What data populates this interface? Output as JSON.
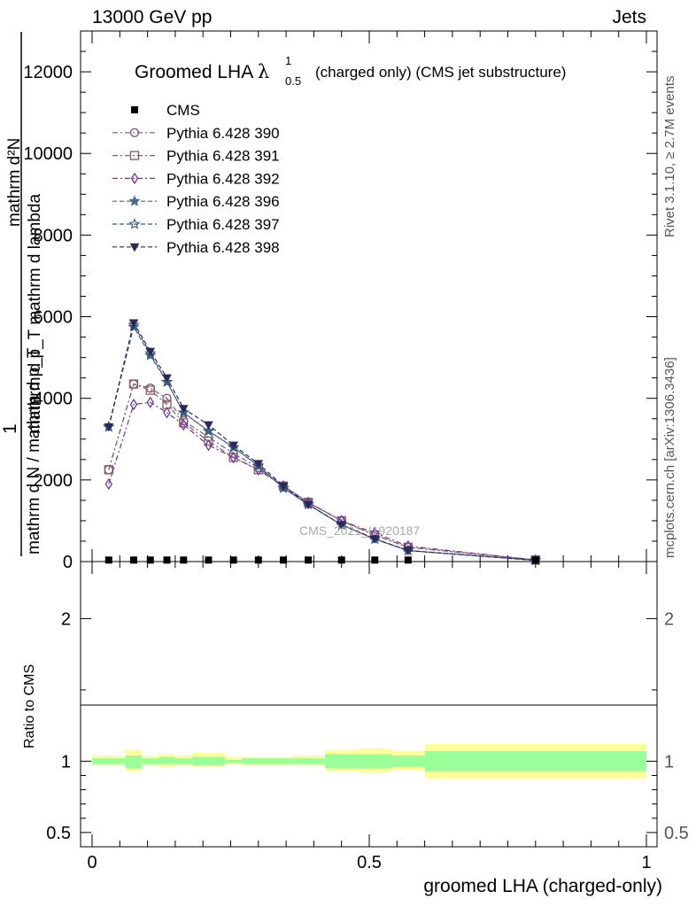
{
  "header": {
    "left": "13000 GeV pp",
    "right": "Jets"
  },
  "side_labels": {
    "rivet": "Rivet 3.1.10, ≥ 2.7M events",
    "mcplots": "mcplots.cern.ch [arXiv:1306.3436]"
  },
  "chart_data": {
    "type": "line",
    "title_main": "Groomed LHA",
    "title_symbol": "λ",
    "title_sup": "1",
    "title_sub": "0.5",
    "title_rest": "(charged only) (CMS jet substructure)",
    "watermark": "CMS_2021_I1920187",
    "ylabel_numer": "mathrm d²N",
    "ylabel_numer2": "mathrm d p_T mathrm d lambda",
    "ylabel_denom": "mathrm d N / mathrm d p_T",
    "ylabel_one": "1",
    "xlabel": "groomed LHA (charged-only)",
    "ratio_ylabel": "Ratio to CMS",
    "xlim": [
      0,
      1
    ],
    "ylim_main": [
      0,
      13000
    ],
    "ylim_ratio": [
      0.4,
      2.4
    ],
    "yticks_main": [
      "0",
      "2000",
      "4000",
      "6000",
      "8000",
      "10000",
      "12000"
    ],
    "yticks_main_values": [
      0,
      2000,
      4000,
      6000,
      8000,
      10000,
      12000
    ],
    "xticks": [
      "0",
      "0.5",
      "1"
    ],
    "xticks_values": [
      0,
      0.5,
      1
    ],
    "yticks_ratio": [
      "0.5",
      "1",
      "2"
    ],
    "yticks_ratio_values": [
      0.5,
      1,
      2
    ],
    "bin_edges": [
      0,
      0.06,
      0.09,
      0.12,
      0.15,
      0.18,
      0.24,
      0.27,
      0.33,
      0.36,
      0.42,
      0.48,
      0.54,
      0.6,
      1.0
    ],
    "x": [
      0.03,
      0.075,
      0.105,
      0.135,
      0.165,
      0.21,
      0.255,
      0.3,
      0.345,
      0.39,
      0.45,
      0.51,
      0.57,
      0.8
    ],
    "cms": {
      "name": "CMS",
      "values": [
        15,
        15,
        15,
        15,
        15,
        15,
        15,
        15,
        15,
        15,
        15,
        15,
        15,
        15
      ]
    },
    "series": [
      {
        "name": "Pythia 6.428 390",
        "color": "#7b5a8a",
        "marker": "circle",
        "values": [
          2250,
          4350,
          4250,
          4000,
          3450,
          3050,
          2650,
          2300,
          1850,
          1450,
          1000,
          650,
          350,
          40
        ]
      },
      {
        "name": "Pythia 6.428 391",
        "color": "#8a5a5a",
        "marker": "square",
        "values": [
          2250,
          4350,
          4200,
          3850,
          3400,
          2950,
          2550,
          2250,
          1850,
          1450,
          1000,
          650,
          350,
          40
        ]
      },
      {
        "name": "Pythia 6.428 392",
        "color": "#6a3a9a",
        "marker": "diamond",
        "values": [
          1900,
          3850,
          3900,
          3650,
          3350,
          2850,
          2550,
          2250,
          1850,
          1450,
          1000,
          700,
          380,
          40
        ]
      },
      {
        "name": "Pythia 6.428 396",
        "color": "#4a6a8a",
        "marker": "star",
        "values": [
          3300,
          5750,
          5050,
          4400,
          3650,
          3200,
          2800,
          2350,
          1800,
          1400,
          900,
          550,
          270,
          30
        ]
      },
      {
        "name": "Pythia 6.428 397",
        "color": "#3a5a7a",
        "marker": "star-open",
        "values": [
          3300,
          5800,
          5100,
          4400,
          3650,
          3200,
          2800,
          2350,
          1800,
          1400,
          900,
          550,
          270,
          30
        ]
      },
      {
        "name": "Pythia 6.428 398",
        "color": "#2a2a5a",
        "marker": "tri-down",
        "values": [
          3300,
          5850,
          5150,
          4500,
          3750,
          3350,
          2850,
          2400,
          1850,
          1400,
          900,
          560,
          270,
          30
        ]
      }
    ],
    "ratio_band": {
      "yellow": [
        [
          0.97,
          1.04
        ],
        [
          0.93,
          1.08
        ],
        [
          0.97,
          1.04
        ],
        [
          0.96,
          1.05
        ],
        [
          0.97,
          1.04
        ],
        [
          0.96,
          1.06
        ],
        [
          0.98,
          1.03
        ],
        [
          0.97,
          1.03
        ],
        [
          0.97,
          1.03
        ],
        [
          0.97,
          1.04
        ],
        [
          0.93,
          1.08
        ],
        [
          0.92,
          1.09
        ],
        [
          0.94,
          1.07
        ],
        [
          0.88,
          1.12
        ]
      ],
      "green": [
        [
          0.98,
          1.02
        ],
        [
          0.95,
          1.04
        ],
        [
          0.98,
          1.02
        ],
        [
          0.98,
          1.03
        ],
        [
          0.98,
          1.02
        ],
        [
          0.97,
          1.03
        ],
        [
          0.99,
          1.01
        ],
        [
          0.98,
          1.02
        ],
        [
          0.98,
          1.02
        ],
        [
          0.98,
          1.02
        ],
        [
          0.95,
          1.05
        ],
        [
          0.95,
          1.05
        ],
        [
          0.96,
          1.04
        ],
        [
          0.93,
          1.07
        ]
      ]
    },
    "band_colors": {
      "yellow": "#ffff99",
      "green": "#99ff99"
    }
  }
}
